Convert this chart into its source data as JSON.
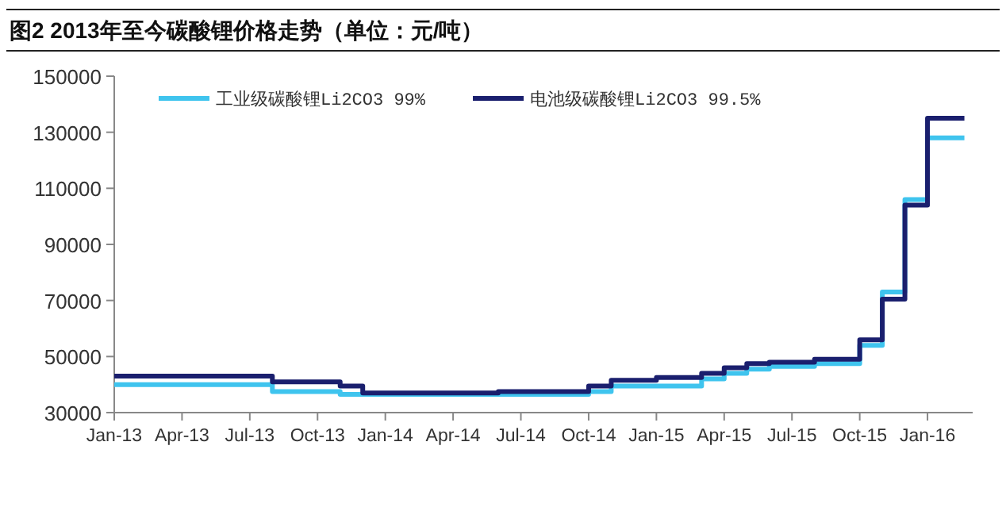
{
  "chart_data": {
    "type": "step",
    "title": "图2  2013年至今碳酸锂价格走势（单位：元/吨）",
    "xlim": [
      "2013-01",
      "2016-03"
    ],
    "xticks": [
      {
        "value": "2013-01",
        "label": "Jan-13"
      },
      {
        "value": "2013-04",
        "label": "Apr-13"
      },
      {
        "value": "2013-07",
        "label": "Jul-13"
      },
      {
        "value": "2013-10",
        "label": "Oct-13"
      },
      {
        "value": "2014-01",
        "label": "Jan-14"
      },
      {
        "value": "2014-04",
        "label": "Apr-14"
      },
      {
        "value": "2014-07",
        "label": "Jul-14"
      },
      {
        "value": "2014-10",
        "label": "Oct-14"
      },
      {
        "value": "2015-01",
        "label": "Jan-15"
      },
      {
        "value": "2015-04",
        "label": "Apr-15"
      },
      {
        "value": "2015-07",
        "label": "Jul-15"
      },
      {
        "value": "2015-10",
        "label": "Oct-15"
      },
      {
        "value": "2016-01",
        "label": "Jan-16"
      }
    ],
    "ylim": [
      30000,
      150000
    ],
    "yticks": [
      30000,
      50000,
      70000,
      90000,
      110000,
      130000,
      150000
    ],
    "legend": "top",
    "grid": false,
    "line_style": "solid",
    "marker": "none",
    "series": [
      {
        "name": "工业级碳酸锂Li2CO3 99%",
        "color": "#3fc4ee",
        "x": [
          "2013-01",
          "2013-08",
          "2013-11",
          "2014-10",
          "2014-11",
          "2015-03",
          "2015-04",
          "2015-05",
          "2015-06",
          "2015-08",
          "2015-10",
          "2015-11",
          "2015-12",
          "2016-01",
          "2016-02-20"
        ],
        "values": [
          40000,
          37500,
          36500,
          37500,
          39500,
          42000,
          44000,
          45500,
          46500,
          47500,
          54000,
          73000,
          106000,
          128000,
          128000
        ]
      },
      {
        "name": "电池级碳酸锂Li2CO3 99.5%",
        "color": "#1a1f6e",
        "x": [
          "2013-01",
          "2013-08",
          "2013-11",
          "2013-12",
          "2014-06",
          "2014-10",
          "2014-11",
          "2015-01",
          "2015-03",
          "2015-04",
          "2015-05",
          "2015-06",
          "2015-08",
          "2015-10",
          "2015-11",
          "2015-12",
          "2016-01",
          "2016-02-20"
        ],
        "values": [
          43000,
          41000,
          39500,
          37000,
          37500,
          39500,
          41500,
          42500,
          44000,
          46000,
          47500,
          48000,
          49000,
          56000,
          70500,
          104000,
          135000,
          135000
        ]
      }
    ]
  }
}
